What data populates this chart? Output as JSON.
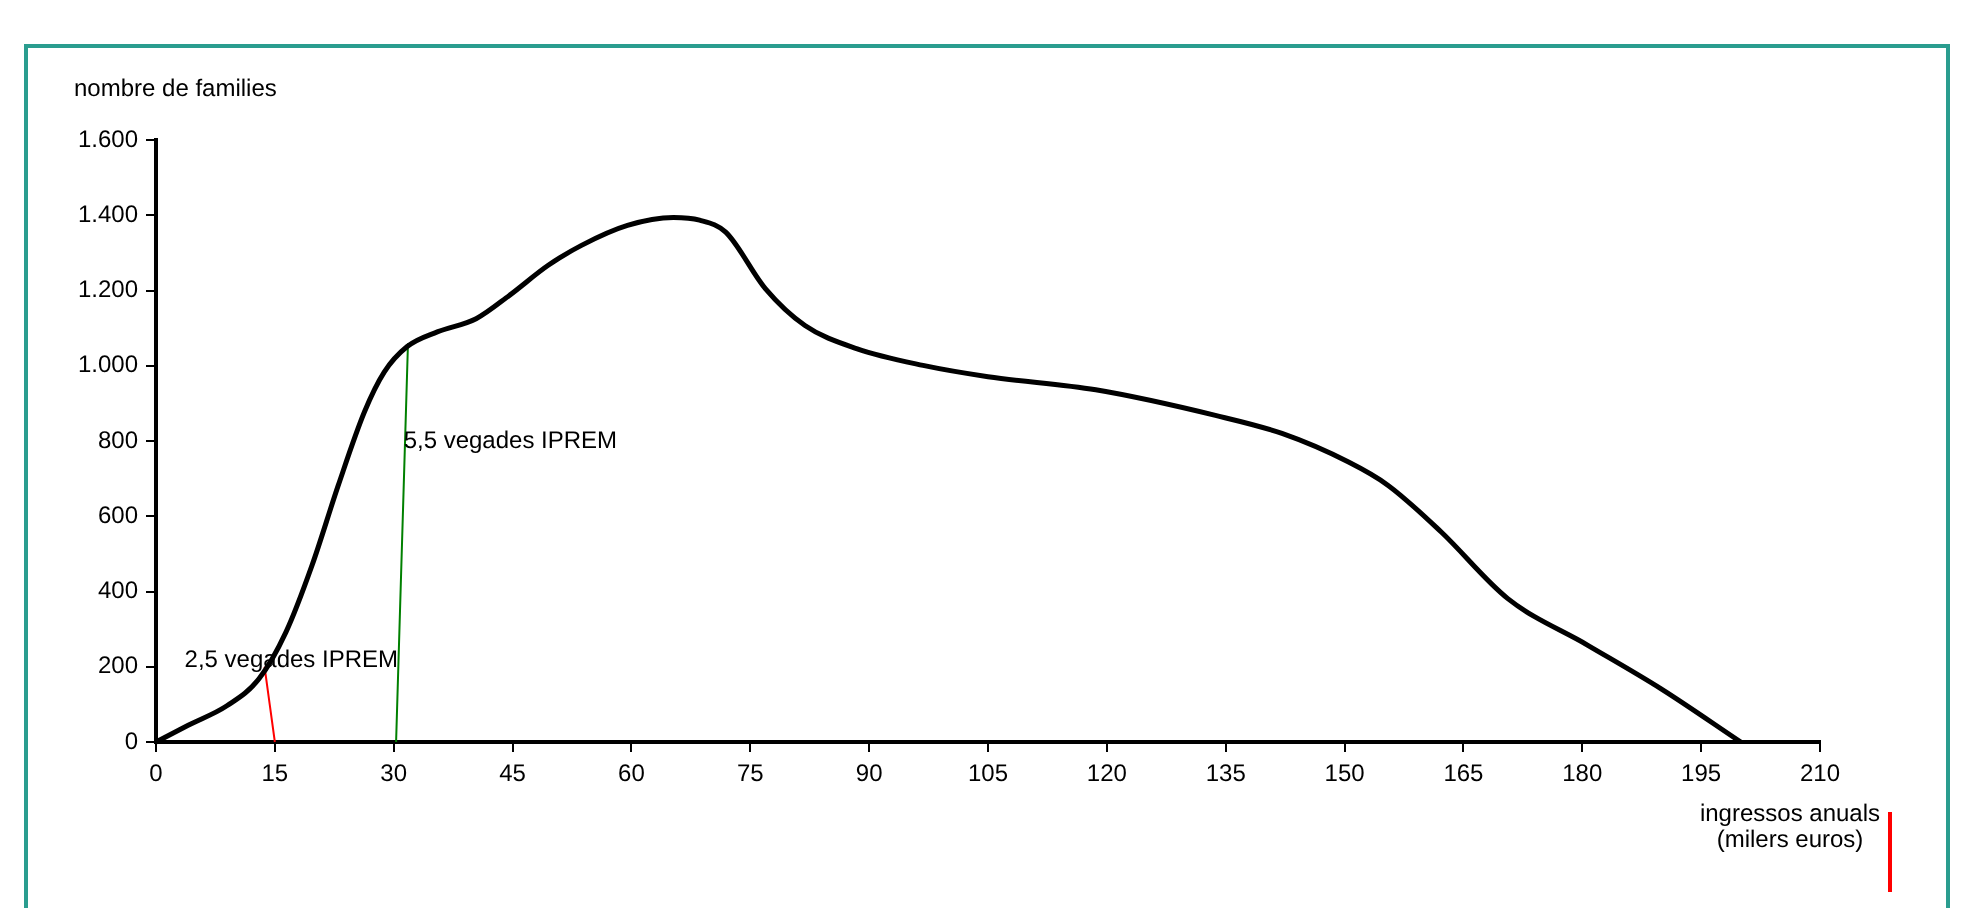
{
  "chart_data": {
    "type": "line",
    "xlabel": "ingressos anuals\n(milers euros)",
    "ylabel": "nombre de families",
    "xlim": [
      0,
      210
    ],
    "xticks": [
      0,
      15,
      30,
      45,
      60,
      75,
      90,
      105,
      120,
      135,
      150,
      165,
      180,
      195,
      210
    ],
    "ylim": [
      0,
      1600
    ],
    "yticks": [
      0,
      200,
      400,
      600,
      800,
      {
        "value": 1000,
        "label": "1.000"
      },
      {
        "value": 1200,
        "label": "1.200"
      },
      {
        "value": 1400,
        "label": "1.400"
      },
      {
        "value": 1600,
        "label": "1.600"
      }
    ],
    "grid": false,
    "legend": false,
    "marker": "none",
    "line_style": "solid",
    "series": [
      {
        "color": "#000000",
        "x": [
          0,
          4,
          9,
          13,
          16.4,
          19.7,
          23,
          26.3,
          28.8,
          31.7,
          35.5,
          40.4,
          44.6,
          49.5,
          53.7,
          59.5,
          65.3,
          68.6,
          71.9,
          76.9,
          81.9,
          88.5,
          96.8,
          105,
          118.6,
          133.7,
          142.1,
          150.5,
          155.5,
          162.2,
          170.6,
          180.7,
          189.9,
          200
        ],
        "values": [
          0,
          44,
          97,
          168,
          292,
          470,
          682,
          877,
          983,
          1051,
          1090,
          1125,
          1187,
          1267,
          1320,
          1373,
          1394,
          1387,
          1355,
          1205,
          1107,
          1045,
          1001,
          971,
          936,
          868,
          820,
          744,
          682,
          558,
          381,
          257,
          142,
          0
        ]
      },
      {
        "color": "#ff0000",
        "x": [
          15,
          13.7
        ],
        "values": [
          0,
          200
        ]
      },
      {
        "color": "#008000",
        "x": [
          30.3,
          31.8
        ],
        "values": [
          0,
          1060
        ]
      }
    ],
    "annotations": [
      {
        "text": "2,5 vegades IPREM",
        "x": 13.7,
        "y": 200
      },
      {
        "text": "5,5 vegades IPREM",
        "x": 31,
        "y": 800
      }
    ]
  }
}
